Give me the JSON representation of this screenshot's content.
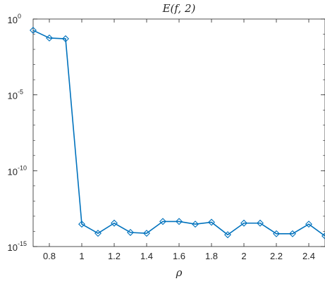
{
  "chart_data": {
    "type": "line",
    "title": "E(f, 2)",
    "xlabel": "ρ",
    "ylabel": "",
    "xlim": [
      0.7,
      2.5
    ],
    "ylim": [
      1e-15,
      1
    ],
    "yscale": "log",
    "grid": false,
    "legend": "none",
    "xticks": [
      0.8,
      1,
      1.2,
      1.4,
      1.6,
      1.8,
      2,
      2.2,
      2.4
    ],
    "xtick_labels": [
      "0.8",
      "1",
      "1.2",
      "1.4",
      "1.6",
      "1.8",
      "2",
      "2.2",
      "2.4"
    ],
    "yticks": [
      {
        "value": 1e-15,
        "base": "10",
        "exponent": "-15"
      },
      {
        "value": 1e-10,
        "base": "10",
        "exponent": "-10"
      },
      {
        "value": 1e-05,
        "base": "10",
        "exponent": "-5"
      },
      {
        "value": 1,
        "base": "10",
        "exponent": "0"
      }
    ],
    "series": [
      {
        "marker": "diamond",
        "color": "#0072BD",
        "x": [
          0.7,
          0.8,
          0.9,
          1.0,
          1.1,
          1.2,
          1.3,
          1.4,
          1.5,
          1.6,
          1.7,
          1.8,
          1.9,
          2.0,
          2.1,
          2.2,
          2.3,
          2.4,
          2.5
        ],
        "y": [
          0.18,
          0.056,
          0.05,
          3e-14,
          7.5e-15,
          3.5e-14,
          8.5e-15,
          7.5e-15,
          4.5e-14,
          4.5e-14,
          3e-14,
          4e-14,
          6e-15,
          3.5e-14,
          3.5e-14,
          7e-15,
          7e-15,
          3e-14,
          5e-15
        ]
      }
    ]
  }
}
